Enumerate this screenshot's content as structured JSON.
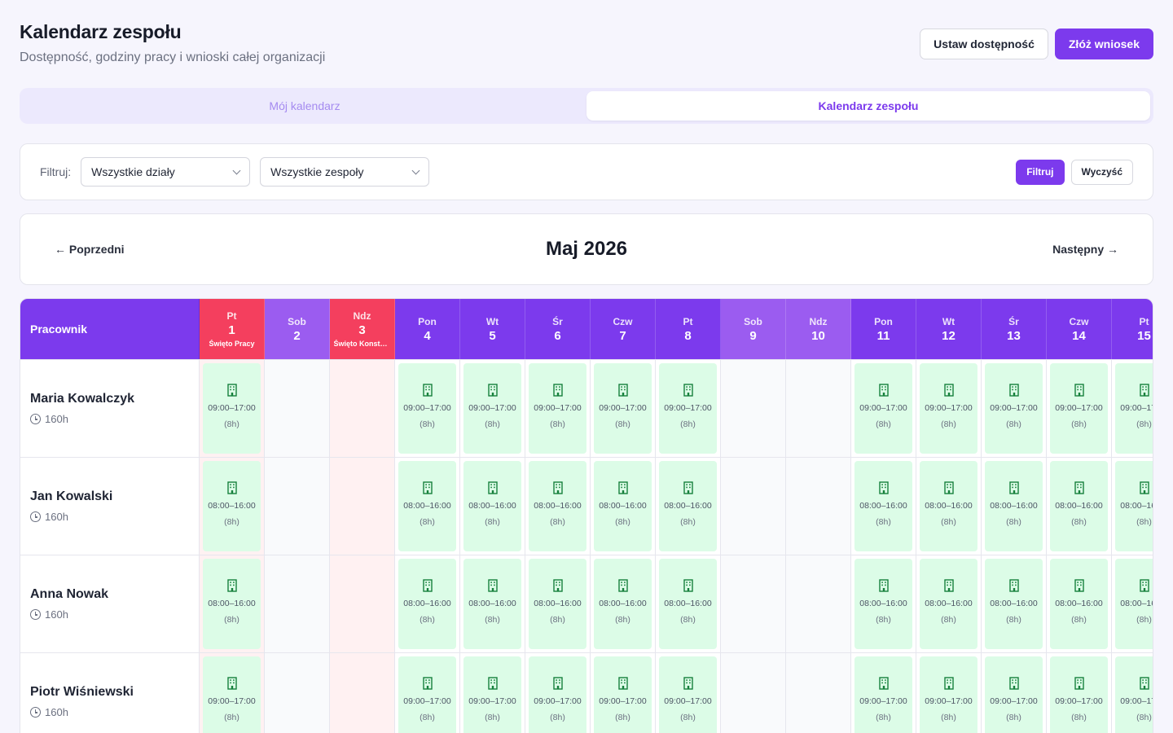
{
  "header": {
    "title": "Kalendarz zespołu",
    "subtitle": "Dostępność, godziny pracy i wnioski całej organizacji",
    "set_availability_label": "Ustaw dostępność",
    "submit_request_label": "Złóż wniosek"
  },
  "tabs": [
    {
      "label": "Mój kalendarz",
      "active": false
    },
    {
      "label": "Kalendarz zespołu",
      "active": true
    }
  ],
  "filters": {
    "label": "Filtruj:",
    "department": "Wszystkie działy",
    "team": "Wszystkie zespoły",
    "apply_label": "Filtruj",
    "clear_label": "Wyczyść"
  },
  "month_nav": {
    "prev_label": "← Poprzedni",
    "title": "Maj 2026",
    "next_label": "Następny →"
  },
  "grid": {
    "employee_header": "Pracownik",
    "days": [
      {
        "dow": "Pt",
        "num": "1",
        "type": "holiday",
        "holiday": "Święto Pracy"
      },
      {
        "dow": "Sob",
        "num": "2",
        "type": "weekend",
        "holiday": ""
      },
      {
        "dow": "Ndz",
        "num": "3",
        "type": "holiday",
        "holiday": "Święto Konstytucji"
      },
      {
        "dow": "Pon",
        "num": "4",
        "type": "work",
        "holiday": ""
      },
      {
        "dow": "Wt",
        "num": "5",
        "type": "work",
        "holiday": ""
      },
      {
        "dow": "Śr",
        "num": "6",
        "type": "work",
        "holiday": ""
      },
      {
        "dow": "Czw",
        "num": "7",
        "type": "work",
        "holiday": ""
      },
      {
        "dow": "Pt",
        "num": "8",
        "type": "work",
        "holiday": ""
      },
      {
        "dow": "Sob",
        "num": "9",
        "type": "weekend",
        "holiday": ""
      },
      {
        "dow": "Ndz",
        "num": "10",
        "type": "weekend",
        "holiday": ""
      },
      {
        "dow": "Pon",
        "num": "11",
        "type": "work",
        "holiday": ""
      },
      {
        "dow": "Wt",
        "num": "12",
        "type": "work",
        "holiday": ""
      },
      {
        "dow": "Śr",
        "num": "13",
        "type": "work",
        "holiday": ""
      },
      {
        "dow": "Czw",
        "num": "14",
        "type": "work",
        "holiday": ""
      },
      {
        "dow": "Pt",
        "num": "15",
        "type": "work",
        "holiday": ""
      }
    ],
    "employees": [
      {
        "name": "Maria Kowalczyk",
        "hours": "160h",
        "shift": "09:00–17:00",
        "duration": "(8h)"
      },
      {
        "name": "Jan Kowalski",
        "hours": "160h",
        "shift": "08:00–16:00",
        "duration": "(8h)"
      },
      {
        "name": "Anna Nowak",
        "hours": "160h",
        "shift": "08:00–16:00",
        "duration": "(8h)"
      },
      {
        "name": "Piotr Wiśniewski",
        "hours": "160h",
        "shift": "09:00–17:00",
        "duration": "(8h)"
      }
    ],
    "shift_days": [
      "1",
      "4",
      "5",
      "6",
      "7",
      "8",
      "11",
      "12",
      "13",
      "14",
      "15"
    ],
    "colors": {
      "work_header": "#7c3aed",
      "weekend_header": "#9b5cf0",
      "holiday_header": "#f43f5e",
      "shift_bg": "#dcfce7",
      "shift_icon": "#16803c"
    }
  }
}
